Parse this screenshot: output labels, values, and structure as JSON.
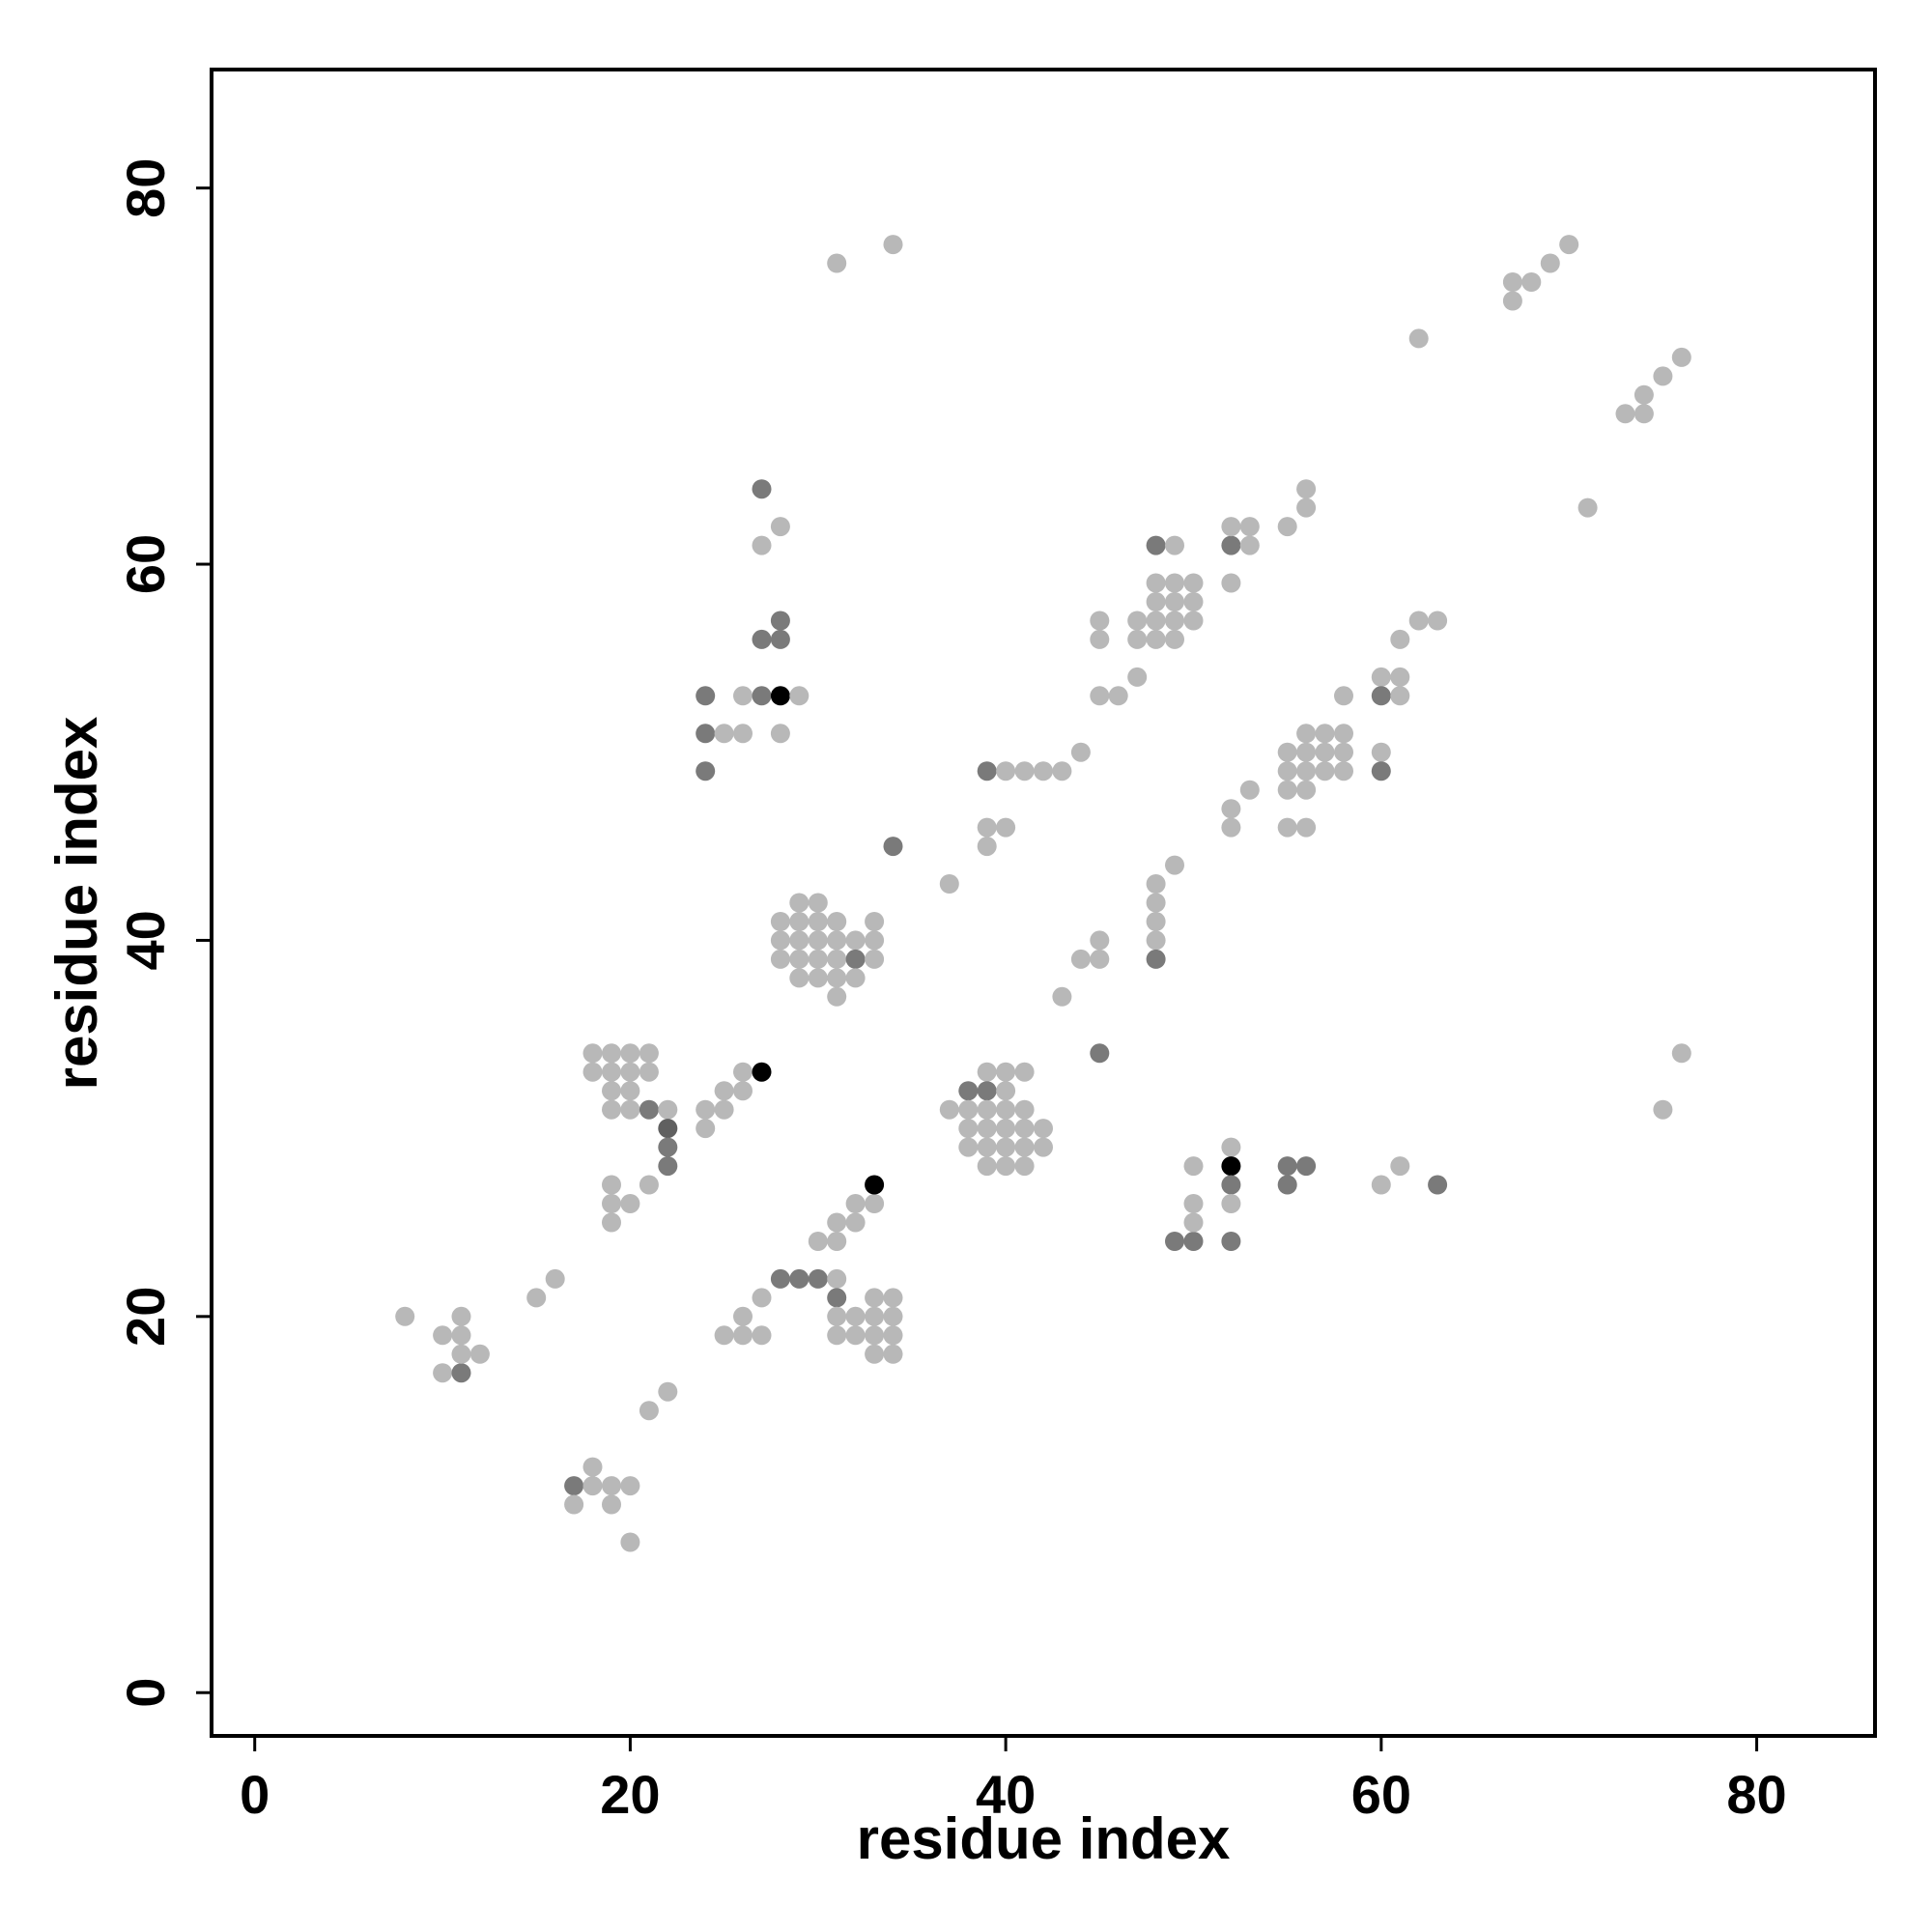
{
  "chart_data": {
    "type": "scatter",
    "xlabel": "residue index",
    "ylabel": "residue index",
    "xlim": [
      -2.3,
      86.3
    ],
    "ylim": [
      -2.3,
      86.3
    ],
    "xticks": [
      0,
      20,
      40,
      60,
      80
    ],
    "yticks": [
      0,
      20,
      40,
      60,
      80
    ],
    "grid": false,
    "shade_colors": {
      "light": "#b8b8b8",
      "medium": "#7a7a7a",
      "dark": "#606060",
      "black": "#000000"
    },
    "points": [
      [
        8,
        20,
        "light"
      ],
      [
        10,
        19,
        "light"
      ],
      [
        11,
        20,
        "light"
      ],
      [
        11,
        19,
        "light"
      ],
      [
        10,
        17,
        "light"
      ],
      [
        11,
        17,
        "medium"
      ],
      [
        11,
        18,
        "light"
      ],
      [
        12,
        18,
        "light"
      ],
      [
        15,
        21,
        "light"
      ],
      [
        16,
        22,
        "light"
      ],
      [
        17,
        11,
        "medium"
      ],
      [
        18,
        11,
        "light"
      ],
      [
        18,
        12,
        "light"
      ],
      [
        19,
        11,
        "light"
      ],
      [
        20,
        11,
        "light"
      ],
      [
        17,
        10,
        "light"
      ],
      [
        19,
        10,
        "light"
      ],
      [
        20,
        8,
        "light"
      ],
      [
        21,
        15,
        "light"
      ],
      [
        22,
        16,
        "light"
      ],
      [
        18,
        34,
        "light"
      ],
      [
        19,
        34,
        "light"
      ],
      [
        20,
        34,
        "light"
      ],
      [
        21,
        34,
        "light"
      ],
      [
        18,
        33,
        "light"
      ],
      [
        19,
        33,
        "light"
      ],
      [
        20,
        33,
        "light"
      ],
      [
        21,
        33,
        "light"
      ],
      [
        19,
        32,
        "light"
      ],
      [
        20,
        32,
        "light"
      ],
      [
        19,
        31,
        "light"
      ],
      [
        20,
        31,
        "light"
      ],
      [
        21,
        31,
        "medium"
      ],
      [
        22,
        31,
        "light"
      ],
      [
        22,
        30,
        "dark"
      ],
      [
        22,
        29,
        "medium"
      ],
      [
        22,
        28,
        "medium"
      ],
      [
        19,
        27,
        "light"
      ],
      [
        19,
        26,
        "light"
      ],
      [
        20,
        26,
        "light"
      ],
      [
        19,
        25,
        "light"
      ],
      [
        21,
        27,
        "light"
      ],
      [
        24,
        31,
        "light"
      ],
      [
        25,
        31,
        "light"
      ],
      [
        24,
        30,
        "light"
      ],
      [
        25,
        32,
        "light"
      ],
      [
        26,
        32,
        "light"
      ],
      [
        26,
        33,
        "light"
      ],
      [
        27,
        33,
        "black"
      ],
      [
        25,
        19,
        "light"
      ],
      [
        26,
        19,
        "light"
      ],
      [
        27,
        19,
        "light"
      ],
      [
        26,
        20,
        "light"
      ],
      [
        27,
        21,
        "light"
      ],
      [
        28,
        22,
        "medium"
      ],
      [
        29,
        22,
        "medium"
      ],
      [
        30,
        22,
        "medium"
      ],
      [
        31,
        22,
        "light"
      ],
      [
        31,
        21,
        "medium"
      ],
      [
        31,
        20,
        "light"
      ],
      [
        32,
        20,
        "light"
      ],
      [
        33,
        20,
        "light"
      ],
      [
        34,
        20,
        "light"
      ],
      [
        33,
        21,
        "light"
      ],
      [
        34,
        21,
        "light"
      ],
      [
        31,
        19,
        "light"
      ],
      [
        32,
        19,
        "light"
      ],
      [
        33,
        19,
        "light"
      ],
      [
        34,
        19,
        "light"
      ],
      [
        33,
        18,
        "light"
      ],
      [
        34,
        18,
        "light"
      ],
      [
        30,
        24,
        "light"
      ],
      [
        31,
        24,
        "light"
      ],
      [
        31,
        25,
        "light"
      ],
      [
        32,
        25,
        "light"
      ],
      [
        32,
        26,
        "light"
      ],
      [
        33,
        26,
        "light"
      ],
      [
        33,
        27,
        "black"
      ],
      [
        24,
        53,
        "medium"
      ],
      [
        24,
        51,
        "medium"
      ],
      [
        25,
        51,
        "light"
      ],
      [
        26,
        51,
        "light"
      ],
      [
        24,
        49,
        "medium"
      ],
      [
        26,
        53,
        "light"
      ],
      [
        27,
        53,
        "medium"
      ],
      [
        28,
        53,
        "black"
      ],
      [
        29,
        53,
        "light"
      ],
      [
        28,
        51,
        "light"
      ],
      [
        27,
        56,
        "medium"
      ],
      [
        28,
        56,
        "medium"
      ],
      [
        28,
        57,
        "medium"
      ],
      [
        27,
        61,
        "light"
      ],
      [
        28,
        62,
        "light"
      ],
      [
        27,
        64,
        "medium"
      ],
      [
        29,
        42,
        "light"
      ],
      [
        30,
        42,
        "light"
      ],
      [
        28,
        41,
        "light"
      ],
      [
        29,
        41,
        "light"
      ],
      [
        30,
        41,
        "light"
      ],
      [
        31,
        41,
        "light"
      ],
      [
        33,
        41,
        "light"
      ],
      [
        28,
        40,
        "light"
      ],
      [
        29,
        40,
        "light"
      ],
      [
        30,
        40,
        "light"
      ],
      [
        31,
        40,
        "light"
      ],
      [
        32,
        40,
        "light"
      ],
      [
        33,
        40,
        "light"
      ],
      [
        28,
        39,
        "light"
      ],
      [
        29,
        39,
        "light"
      ],
      [
        30,
        39,
        "light"
      ],
      [
        31,
        39,
        "light"
      ],
      [
        32,
        39,
        "medium"
      ],
      [
        33,
        39,
        "light"
      ],
      [
        29,
        38,
        "light"
      ],
      [
        30,
        38,
        "light"
      ],
      [
        31,
        38,
        "light"
      ],
      [
        32,
        38,
        "light"
      ],
      [
        31,
        37,
        "light"
      ],
      [
        34,
        45,
        "medium"
      ],
      [
        37,
        43,
        "light"
      ],
      [
        31,
        76,
        "light"
      ],
      [
        34,
        77,
        "light"
      ],
      [
        39,
        33,
        "light"
      ],
      [
        40,
        33,
        "light"
      ],
      [
        41,
        33,
        "light"
      ],
      [
        38,
        32,
        "medium"
      ],
      [
        39,
        32,
        "medium"
      ],
      [
        40,
        32,
        "light"
      ],
      [
        37,
        31,
        "light"
      ],
      [
        38,
        31,
        "light"
      ],
      [
        39,
        31,
        "light"
      ],
      [
        40,
        31,
        "light"
      ],
      [
        41,
        31,
        "light"
      ],
      [
        38,
        30,
        "light"
      ],
      [
        39,
        30,
        "light"
      ],
      [
        40,
        30,
        "light"
      ],
      [
        41,
        30,
        "light"
      ],
      [
        42,
        30,
        "light"
      ],
      [
        38,
        29,
        "light"
      ],
      [
        39,
        29,
        "light"
      ],
      [
        40,
        29,
        "light"
      ],
      [
        41,
        29,
        "light"
      ],
      [
        42,
        29,
        "light"
      ],
      [
        39,
        28,
        "light"
      ],
      [
        40,
        28,
        "light"
      ],
      [
        41,
        28,
        "light"
      ],
      [
        39,
        49,
        "medium"
      ],
      [
        40,
        49,
        "light"
      ],
      [
        41,
        49,
        "light"
      ],
      [
        42,
        49,
        "light"
      ],
      [
        43,
        49,
        "light"
      ],
      [
        44,
        50,
        "light"
      ],
      [
        39,
        46,
        "light"
      ],
      [
        40,
        46,
        "light"
      ],
      [
        39,
        45,
        "light"
      ],
      [
        43,
        37,
        "light"
      ],
      [
        44,
        39,
        "light"
      ],
      [
        45,
        39,
        "light"
      ],
      [
        45,
        40,
        "light"
      ],
      [
        45,
        34,
        "medium"
      ],
      [
        45,
        57,
        "light"
      ],
      [
        45,
        56,
        "light"
      ],
      [
        45,
        53,
        "light"
      ],
      [
        46,
        53,
        "light"
      ],
      [
        47,
        54,
        "light"
      ],
      [
        47,
        57,
        "light"
      ],
      [
        48,
        57,
        "light"
      ],
      [
        49,
        57,
        "light"
      ],
      [
        50,
        57,
        "light"
      ],
      [
        47,
        56,
        "light"
      ],
      [
        48,
        56,
        "light"
      ],
      [
        49,
        56,
        "light"
      ],
      [
        48,
        58,
        "light"
      ],
      [
        49,
        58,
        "light"
      ],
      [
        50,
        58,
        "light"
      ],
      [
        48,
        59,
        "light"
      ],
      [
        49,
        59,
        "light"
      ],
      [
        50,
        59,
        "light"
      ],
      [
        48,
        61,
        "medium"
      ],
      [
        49,
        61,
        "light"
      ],
      [
        52,
        61,
        "medium"
      ],
      [
        53,
        61,
        "light"
      ],
      [
        52,
        62,
        "light"
      ],
      [
        53,
        62,
        "light"
      ],
      [
        52,
        59,
        "light"
      ],
      [
        55,
        62,
        "light"
      ],
      [
        56,
        63,
        "light"
      ],
      [
        56,
        64,
        "light"
      ],
      [
        48,
        43,
        "light"
      ],
      [
        48,
        42,
        "light"
      ],
      [
        48,
        41,
        "light"
      ],
      [
        48,
        40,
        "light"
      ],
      [
        48,
        39,
        "medium"
      ],
      [
        49,
        44,
        "light"
      ],
      [
        52,
        47,
        "light"
      ],
      [
        52,
        46,
        "light"
      ],
      [
        53,
        48,
        "light"
      ],
      [
        55,
        50,
        "light"
      ],
      [
        56,
        50,
        "light"
      ],
      [
        57,
        50,
        "light"
      ],
      [
        58,
        50,
        "light"
      ],
      [
        56,
        51,
        "light"
      ],
      [
        57,
        51,
        "light"
      ],
      [
        58,
        51,
        "light"
      ],
      [
        55,
        49,
        "light"
      ],
      [
        56,
        49,
        "light"
      ],
      [
        57,
        49,
        "light"
      ],
      [
        58,
        49,
        "light"
      ],
      [
        55,
        48,
        "light"
      ],
      [
        56,
        48,
        "light"
      ],
      [
        55,
        46,
        "light"
      ],
      [
        56,
        46,
        "light"
      ],
      [
        58,
        53,
        "light"
      ],
      [
        60,
        50,
        "light"
      ],
      [
        60,
        49,
        "medium"
      ],
      [
        60,
        54,
        "light"
      ],
      [
        61,
        54,
        "light"
      ],
      [
        60,
        53,
        "medium"
      ],
      [
        61,
        53,
        "light"
      ],
      [
        61,
        56,
        "light"
      ],
      [
        62,
        57,
        "light"
      ],
      [
        63,
        57,
        "light"
      ],
      [
        49,
        24,
        "medium"
      ],
      [
        50,
        24,
        "medium"
      ],
      [
        50,
        25,
        "light"
      ],
      [
        50,
        26,
        "light"
      ],
      [
        50,
        28,
        "light"
      ],
      [
        52,
        29,
        "light"
      ],
      [
        52,
        28,
        "black"
      ],
      [
        52,
        27,
        "medium"
      ],
      [
        52,
        26,
        "light"
      ],
      [
        52,
        24,
        "medium"
      ],
      [
        55,
        28,
        "medium"
      ],
      [
        56,
        28,
        "medium"
      ],
      [
        55,
        27,
        "medium"
      ],
      [
        60,
        27,
        "light"
      ],
      [
        61,
        28,
        "light"
      ],
      [
        63,
        27,
        "medium"
      ],
      [
        62,
        72,
        "light"
      ],
      [
        67,
        75,
        "light"
      ],
      [
        68,
        75,
        "light"
      ],
      [
        69,
        76,
        "light"
      ],
      [
        70,
        77,
        "light"
      ],
      [
        67,
        74,
        "light"
      ],
      [
        71,
        63,
        "light"
      ],
      [
        73,
        68,
        "light"
      ],
      [
        74,
        68,
        "light"
      ],
      [
        74,
        69,
        "light"
      ],
      [
        75,
        70,
        "light"
      ],
      [
        76,
        71,
        "light"
      ],
      [
        76,
        34,
        "light"
      ],
      [
        75,
        31,
        "light"
      ]
    ]
  }
}
